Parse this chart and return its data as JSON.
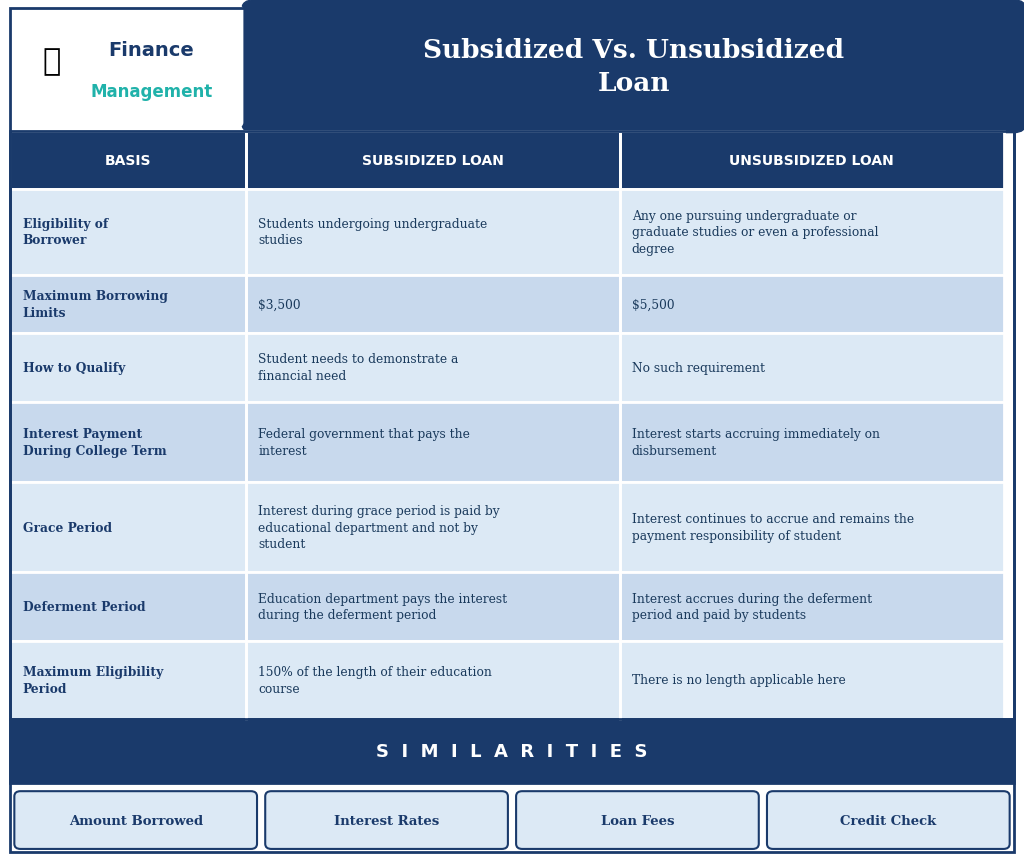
{
  "title": "Subsidized Vs. Unsubsidized\nLoan",
  "title_bg": "#1a3a6b",
  "title_color": "#ffffff",
  "logo_text_finance": "Finance",
  "logo_text_management": "Management",
  "header_bg": "#1a3a6b",
  "header_color": "#ffffff",
  "headers": [
    "BASIS",
    "SUBSIDIZED LOAN",
    "UNSUBSIDIZED LOAN"
  ],
  "row_bg_odd": "#dce9f5",
  "row_bg_even": "#c8d9ed",
  "basis_col_bold_color": "#1a3a6b",
  "cell_text_color": "#1a3a5c",
  "rows": [
    {
      "basis": "Eligibility of\nBorrower",
      "subsidized": "Students undergoing undergraduate\nstudies",
      "unsubsidized": "Any one pursuing undergraduate or\ngraduate studies or even a professional\ndegree"
    },
    {
      "basis": "Maximum Borrowing\nLimits",
      "subsidized": "$3,500",
      "unsubsidized": "$5,500"
    },
    {
      "basis": "How to Qualify",
      "subsidized": "Student needs to demonstrate a\nfinancial need",
      "unsubsidized": "No such requirement"
    },
    {
      "basis": "Interest Payment\nDuring College Term",
      "subsidized": "Federal government that pays the\ninterest",
      "unsubsidized": "Interest starts accruing immediately on\ndisbursement"
    },
    {
      "basis": "Grace Period",
      "subsidized": "Interest during grace period is paid by\neducational department and not by\nstudent",
      "unsubsidized": "Interest continues to accrue and remains the\npayment responsibility of student"
    },
    {
      "basis": "Deferment Period",
      "subsidized": "Education department pays the interest\nduring the deferment period",
      "unsubsidized": "Interest accrues during the deferment\nperiod and paid by students"
    },
    {
      "basis": "Maximum Eligibility\nPeriod",
      "subsidized": "150% of the length of their education\ncourse",
      "unsubsidized": "There is no length applicable here"
    }
  ],
  "similarities_bg": "#1a3a6b",
  "similarities_text": "SIMILARITIES",
  "similarities_color": "#ffffff",
  "similarity_items": [
    "Amount Borrowed",
    "Interest Rates",
    "Loan Fees",
    "Credit Check"
  ],
  "similarity_box_bg": "#dce9f5",
  "similarity_box_border": "#1a3a6b",
  "bg_color": "#ffffff",
  "outer_border_color": "#1a3a6b"
}
